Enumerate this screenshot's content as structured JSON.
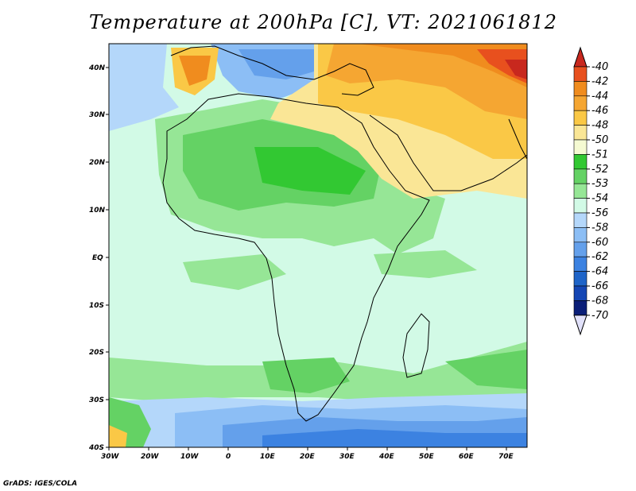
{
  "title": "Temperature at 200hPa [C], VT: 2021061812",
  "credit": "GrADS: IGES/COLA",
  "axes": {
    "lon_labels": [
      "30W",
      "20W",
      "10W",
      "0",
      "10E",
      "20E",
      "30E",
      "40E",
      "50E",
      "60E",
      "70E"
    ],
    "lat_labels": [
      "40N",
      "30N",
      "20N",
      "10N",
      "EQ",
      "10S",
      "20S",
      "30S",
      "40S"
    ]
  },
  "colorbar": {
    "levels": [
      "-40",
      "-42",
      "-44",
      "-46",
      "-48",
      "-50",
      "-51",
      "-52",
      "-53",
      "-54",
      "-56",
      "-58",
      "-60",
      "-62",
      "-64",
      "-66",
      "-68",
      "-70"
    ],
    "colors": [
      "#c8281e",
      "#e8501e",
      "#f08c1e",
      "#f5a632",
      "#fac846",
      "#fae696",
      "#f5fad2",
      "#32c832",
      "#64d264",
      "#96e696",
      "#d2fae6",
      "#b4d7fa",
      "#8cbef5",
      "#64a0eb",
      "#3c82e1",
      "#1e64c8",
      "#1446b4",
      "#0a1e78",
      "#d2d2fa"
    ],
    "top_arrow_color": "#c8281e",
    "bottom_arrow_color": "#e1e1fa"
  },
  "colors": {
    "ocean_default": "#d2fae6",
    "land_outline": "#000000"
  }
}
